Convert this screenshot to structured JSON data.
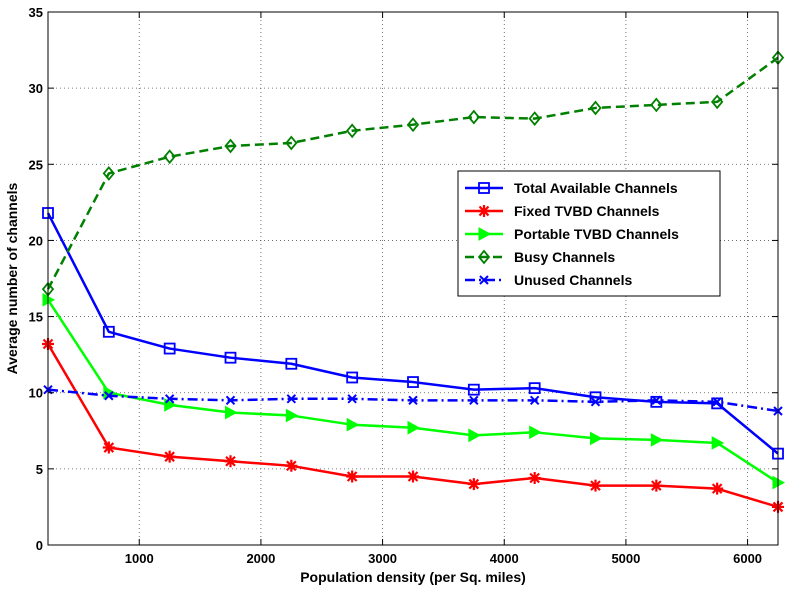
{
  "chart_data": {
    "type": "line",
    "xlabel": "Population density (per Sq. miles)",
    "ylabel": "Average number of channels",
    "xlim": [
      250,
      6250
    ],
    "ylim": [
      0,
      35
    ],
    "x_ticks": [
      1000,
      2000,
      3000,
      4000,
      5000,
      6000
    ],
    "y_ticks": [
      0,
      5,
      10,
      15,
      20,
      25,
      30,
      35
    ],
    "grid": true,
    "legend_position": "right-center",
    "x": [
      250,
      750,
      1250,
      1750,
      2250,
      2750,
      3250,
      3750,
      4250,
      4750,
      5250,
      5750,
      6250
    ],
    "series": [
      {
        "name": "Total Available Channels",
        "color": "#0000ff",
        "line_style": "solid",
        "marker": "square",
        "values": [
          21.8,
          14.0,
          12.9,
          12.3,
          11.9,
          11.0,
          10.7,
          10.2,
          10.3,
          9.7,
          9.4,
          9.3,
          6.0
        ]
      },
      {
        "name": "Fixed TVBD Channels",
        "color": "#ff0000",
        "line_style": "solid",
        "marker": "asterisk",
        "values": [
          13.2,
          6.4,
          5.8,
          5.5,
          5.2,
          4.5,
          4.5,
          4.0,
          4.4,
          3.9,
          3.9,
          3.7,
          2.5
        ]
      },
      {
        "name": "Portable TVBD Channels",
        "color": "#00ff00",
        "line_style": "solid",
        "marker": "triangle-right",
        "values": [
          16.1,
          10.0,
          9.2,
          8.7,
          8.5,
          7.9,
          7.7,
          7.2,
          7.4,
          7.0,
          6.9,
          6.7,
          4.1
        ]
      },
      {
        "name": "Busy Channels",
        "color": "#008000",
        "line_style": "dashed",
        "marker": "diamond",
        "values": [
          16.8,
          24.4,
          25.5,
          26.2,
          26.4,
          27.2,
          27.6,
          28.1,
          28.0,
          28.7,
          28.9,
          29.1,
          32.0
        ]
      },
      {
        "name": "Unused Channels",
        "color": "#0000ff",
        "line_style": "dashdot",
        "marker": "x",
        "values": [
          10.2,
          9.8,
          9.6,
          9.5,
          9.6,
          9.6,
          9.5,
          9.5,
          9.5,
          9.4,
          9.5,
          9.4,
          8.8
        ]
      }
    ]
  }
}
